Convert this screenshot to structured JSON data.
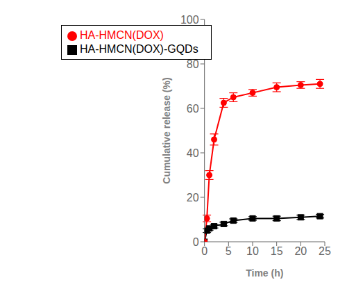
{
  "chart_data": {
    "type": "line",
    "xlabel": "Time (h)",
    "ylabel": "Cumulative release (%)",
    "x": [
      0,
      0.5,
      1,
      2,
      4,
      6,
      10,
      15,
      20,
      24
    ],
    "series": [
      {
        "name": "HA-HMCN(DOX)-GQDs",
        "color": "#000000",
        "marker": "square",
        "values": [
          0,
          5.0,
          6.0,
          7.0,
          8.0,
          9.5,
          10.5,
          10.5,
          11.0,
          11.5
        ],
        "yerr": [
          0,
          0.8,
          0.8,
          0.8,
          0.8,
          0.8,
          0.8,
          1.0,
          1.0,
          0.8
        ]
      },
      {
        "name": "HA-HMCN(DOX)",
        "color": "#ff0000",
        "marker": "circle",
        "values": [
          0,
          10.5,
          30.0,
          46.0,
          62.5,
          65.0,
          67.0,
          69.5,
          70.5,
          71.0
        ],
        "yerr": [
          0,
          1.5,
          2.0,
          2.5,
          2.0,
          2.0,
          1.5,
          2.0,
          1.5,
          2.0
        ]
      }
    ],
    "xlim": [
      0,
      25
    ],
    "ylim": [
      0,
      100
    ],
    "xticks": [
      0,
      5,
      10,
      15,
      20,
      25
    ],
    "yticks": [
      0,
      20,
      40,
      60,
      80,
      100
    ],
    "grid": false,
    "legend": "upper left"
  }
}
